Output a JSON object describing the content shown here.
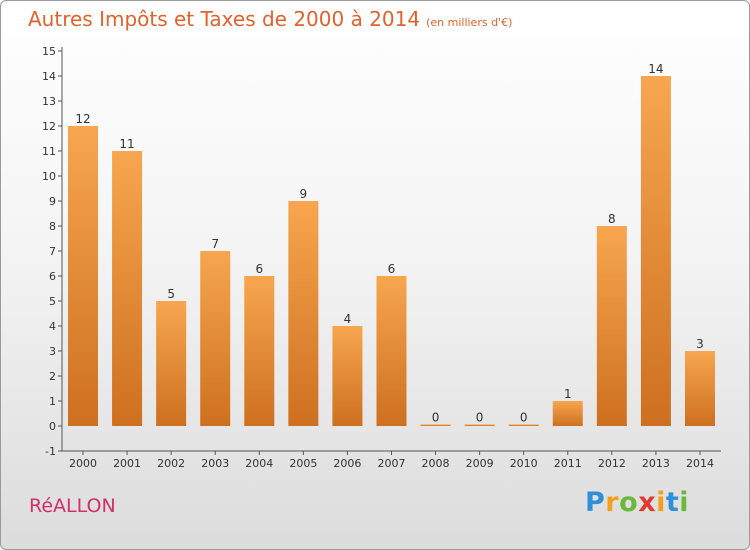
{
  "chart_data": {
    "type": "bar",
    "title": "Autres Impôts et Taxes de 2000 à 2014",
    "unit": "(en milliers d'€)",
    "categories": [
      "2000",
      "2001",
      "2002",
      "2003",
      "2004",
      "2005",
      "2006",
      "2007",
      "2008",
      "2009",
      "2010",
      "2011",
      "2012",
      "2013",
      "2014"
    ],
    "values": [
      12,
      11,
      5,
      7,
      6,
      9,
      4,
      6,
      0,
      0,
      0,
      1,
      8,
      14,
      3
    ],
    "ylim": [
      -1,
      15
    ],
    "yticks": [
      "-1",
      "0",
      "1",
      "2",
      "3",
      "4",
      "5",
      "6",
      "7",
      "8",
      "9",
      "10",
      "11",
      "12",
      "13",
      "14",
      "15"
    ],
    "grid": false,
    "colors": {
      "bar_light": "#f7a64f",
      "bar_dark": "#cd7020",
      "title": "#e0632c"
    }
  },
  "commune": "RéALLON",
  "logo": {
    "letters": [
      {
        "ch": "P",
        "color": "#2f8fd8"
      },
      {
        "ch": "r",
        "color": "#f2a11f"
      },
      {
        "ch": "o",
        "color": "#6cb83a"
      },
      {
        "ch": "x",
        "color": "#e23a2e"
      },
      {
        "ch": "i",
        "color": "#f2a11f"
      },
      {
        "ch": "t",
        "color": "#2f8fd8"
      },
      {
        "ch": "i",
        "color": "#6cb83a"
      }
    ]
  }
}
